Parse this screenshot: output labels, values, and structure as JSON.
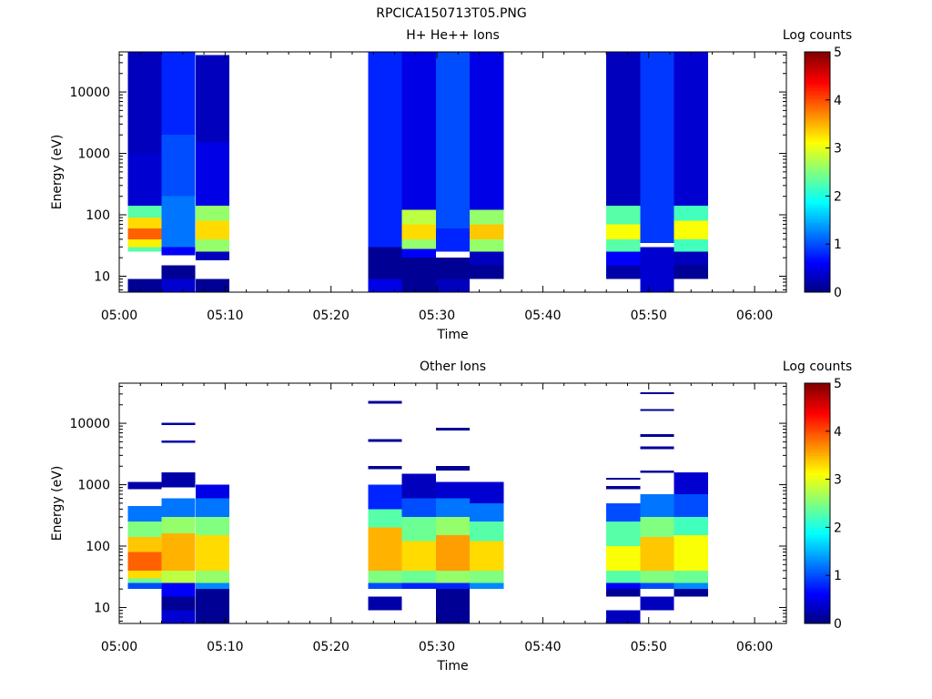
{
  "figure_title": "RPCICA150713T05.PNG",
  "chart_data": [
    {
      "type": "heatmap",
      "title": "H+ He++ Ions",
      "xlabel": "Time",
      "ylabel": "Energy (eV)",
      "x_ticks": [
        "05:00",
        "05:10",
        "05:20",
        "05:30",
        "05:40",
        "05:50",
        "06:00"
      ],
      "x_range_minutes": [
        0,
        63
      ],
      "y_ticks": [
        10,
        100,
        1000,
        10000
      ],
      "y_range": [
        5.5,
        45000
      ],
      "y_scale": "log",
      "colorbar": {
        "label": "Log counts",
        "range": [
          0,
          5
        ],
        "ticks": [
          0,
          1,
          2,
          3,
          4,
          5
        ]
      },
      "columns": [
        {
          "start": 0.8,
          "end": 4.0,
          "bins": [
            [
              5.5,
              9,
              0.1
            ],
            [
              9,
              25,
              null
            ],
            [
              25,
              30,
              2.3
            ],
            [
              30,
              40,
              3.2
            ],
            [
              40,
              60,
              3.9
            ],
            [
              60,
              90,
              3.3
            ],
            [
              90,
              140,
              2.3
            ],
            [
              140,
              1000,
              0.4
            ],
            [
              1000,
              45000,
              0.3
            ]
          ]
        },
        {
          "start": 4.0,
          "end": 7.2,
          "bins": [
            [
              5.5,
              9,
              0.4
            ],
            [
              9,
              15,
              0.1
            ],
            [
              15,
              22,
              null
            ],
            [
              22,
              30,
              0.6
            ],
            [
              30,
              200,
              1.2
            ],
            [
              200,
              2000,
              1.0
            ],
            [
              2000,
              45000,
              0.8
            ]
          ]
        },
        {
          "start": 7.2,
          "end": 10.4,
          "bins": [
            [
              5.5,
              9,
              0.1
            ],
            [
              9,
              18,
              null
            ],
            [
              18,
              25,
              0.3
            ],
            [
              25,
              40,
              2.6
            ],
            [
              40,
              80,
              3.3
            ],
            [
              80,
              140,
              2.6
            ],
            [
              140,
              1500,
              0.5
            ],
            [
              1500,
              40000,
              0.3
            ]
          ]
        },
        {
          "start": 23.5,
          "end": 26.7,
          "bins": [
            [
              5.5,
              9,
              0.5
            ],
            [
              9,
              30,
              0.1
            ],
            [
              30,
              60,
              0.8
            ],
            [
              60,
              45000,
              0.8
            ]
          ]
        },
        {
          "start": 26.7,
          "end": 29.9,
          "bins": [
            [
              5.5,
              20,
              0.1
            ],
            [
              20,
              28,
              0.6
            ],
            [
              28,
              40,
              2.6
            ],
            [
              40,
              70,
              3.3
            ],
            [
              70,
              120,
              2.8
            ],
            [
              120,
              45000,
              0.5
            ]
          ]
        },
        {
          "start": 29.9,
          "end": 33.1,
          "bins": [
            [
              5.5,
              9,
              0.3
            ],
            [
              9,
              20,
              0.1
            ],
            [
              20,
              25,
              null
            ],
            [
              25,
              60,
              0.8
            ],
            [
              60,
              45000,
              1.0
            ]
          ]
        },
        {
          "start": 33.1,
          "end": 36.3,
          "bins": [
            [
              9,
              15,
              0.1
            ],
            [
              15,
              25,
              0.3
            ],
            [
              25,
              40,
              2.6
            ],
            [
              40,
              70,
              3.4
            ],
            [
              70,
              120,
              2.6
            ],
            [
              120,
              45000,
              0.5
            ]
          ]
        },
        {
          "start": 46.0,
          "end": 49.2,
          "bins": [
            [
              9,
              15,
              0.2
            ],
            [
              15,
              25,
              0.6
            ],
            [
              25,
              40,
              2.3
            ],
            [
              40,
              70,
              3.1
            ],
            [
              70,
              140,
              2.3
            ],
            [
              140,
              45000,
              0.3
            ]
          ]
        },
        {
          "start": 49.2,
          "end": 52.4,
          "bins": [
            [
              5.5,
              30,
              0.4
            ],
            [
              30,
              35,
              null
            ],
            [
              35,
              60,
              0.9
            ],
            [
              60,
              45000,
              0.9
            ]
          ]
        },
        {
          "start": 52.4,
          "end": 55.6,
          "bins": [
            [
              9,
              15,
              0.1
            ],
            [
              15,
              25,
              0.3
            ],
            [
              25,
              40,
              2.2
            ],
            [
              40,
              80,
              3.1
            ],
            [
              80,
              140,
              2.2
            ],
            [
              140,
              45000,
              0.4
            ]
          ]
        }
      ]
    },
    {
      "type": "heatmap",
      "title": "Other Ions",
      "xlabel": "Time",
      "ylabel": "Energy (eV)",
      "x_ticks": [
        "05:00",
        "05:10",
        "05:20",
        "05:30",
        "05:40",
        "05:50",
        "06:00"
      ],
      "x_range_minutes": [
        0,
        63
      ],
      "y_ticks": [
        10,
        100,
        1000,
        10000
      ],
      "y_range": [
        5.5,
        45000
      ],
      "y_scale": "log",
      "colorbar": {
        "label": "Log counts",
        "range": [
          0,
          5
        ],
        "ticks": [
          0,
          1,
          2,
          3,
          4,
          5
        ]
      },
      "columns": [
        {
          "start": 0.8,
          "end": 4.0,
          "bins": [
            [
              20,
              25,
              1.0
            ],
            [
              25,
              30,
              2.4
            ],
            [
              30,
              40,
              3.3
            ],
            [
              40,
              80,
              3.9
            ],
            [
              80,
              140,
              3.4
            ],
            [
              140,
              250,
              2.5
            ],
            [
              250,
              450,
              1.2
            ],
            [
              850,
              1100,
              0.2
            ]
          ]
        },
        {
          "start": 4.0,
          "end": 7.2,
          "bins": [
            [
              5.5,
              9,
              0.4
            ],
            [
              9,
              15,
              0.1
            ],
            [
              15,
              25,
              0.6
            ],
            [
              25,
              40,
              2.8
            ],
            [
              40,
              160,
              3.5
            ],
            [
              160,
              300,
              2.6
            ],
            [
              300,
              600,
              1.2
            ],
            [
              900,
              1600,
              0.2
            ],
            [
              4800,
              5200,
              0.2
            ],
            [
              9400,
              10200,
              0.2
            ]
          ]
        },
        {
          "start": 7.2,
          "end": 10.4,
          "bins": [
            [
              5.5,
              20,
              0.1
            ],
            [
              20,
              25,
              1.3
            ],
            [
              25,
              40,
              2.6
            ],
            [
              40,
              150,
              3.3
            ],
            [
              150,
              300,
              2.5
            ],
            [
              300,
              600,
              1.2
            ],
            [
              600,
              1000,
              0.5
            ]
          ]
        },
        {
          "start": 23.5,
          "end": 26.7,
          "bins": [
            [
              9,
              15,
              0.2
            ],
            [
              15,
              20,
              null
            ],
            [
              20,
              25,
              1.0
            ],
            [
              25,
              40,
              2.5
            ],
            [
              40,
              200,
              3.5
            ],
            [
              200,
              400,
              2.3
            ],
            [
              400,
              1000,
              0.8
            ],
            [
              1800,
              2000,
              0.1
            ],
            [
              5000,
              5500,
              0.1
            ],
            [
              21000,
              23000,
              0.1
            ]
          ]
        },
        {
          "start": 26.7,
          "end": 29.9,
          "bins": [
            [
              20,
              25,
              0.8
            ],
            [
              25,
              40,
              2.4
            ],
            [
              40,
              120,
              3.3
            ],
            [
              120,
              300,
              2.4
            ],
            [
              300,
              600,
              1.0
            ],
            [
              600,
              1500,
              0.3
            ]
          ]
        },
        {
          "start": 29.9,
          "end": 33.1,
          "bins": [
            [
              5.5,
              20,
              0.1
            ],
            [
              20,
              25,
              0.8
            ],
            [
              25,
              40,
              2.6
            ],
            [
              40,
              150,
              3.6
            ],
            [
              150,
              300,
              2.6
            ],
            [
              300,
              600,
              1.2
            ],
            [
              600,
              1100,
              0.4
            ],
            [
              1700,
              2000,
              0.1
            ],
            [
              7600,
              8400,
              0.1
            ]
          ]
        },
        {
          "start": 33.1,
          "end": 36.3,
          "bins": [
            [
              20,
              25,
              1.3
            ],
            [
              25,
              40,
              2.5
            ],
            [
              40,
              120,
              3.3
            ],
            [
              120,
              250,
              2.3
            ],
            [
              250,
              500,
              1.2
            ],
            [
              500,
              1100,
              0.4
            ]
          ]
        },
        {
          "start": 46.0,
          "end": 49.2,
          "bins": [
            [
              5.5,
              9,
              0.3
            ],
            [
              15,
              20,
              0.1
            ],
            [
              20,
              25,
              0.6
            ],
            [
              25,
              40,
              2.3
            ],
            [
              40,
              100,
              3.1
            ],
            [
              100,
              250,
              2.3
            ],
            [
              250,
              500,
              1.0
            ],
            [
              850,
              950,
              0.1
            ],
            [
              1200,
              1300,
              0.1
            ]
          ]
        },
        {
          "start": 49.2,
          "end": 52.4,
          "bins": [
            [
              9,
              15,
              0.3
            ],
            [
              20,
              25,
              1.0
            ],
            [
              25,
              40,
              2.5
            ],
            [
              40,
              140,
              3.4
            ],
            [
              140,
              300,
              2.5
            ],
            [
              300,
              700,
              1.2
            ],
            [
              1550,
              1700,
              0.1
            ],
            [
              3800,
              4200,
              0.1
            ],
            [
              6000,
              6600,
              0.1
            ],
            [
              16000,
              17000,
              0.1
            ],
            [
              30000,
              32000,
              0.1
            ]
          ]
        },
        {
          "start": 52.4,
          "end": 55.6,
          "bins": [
            [
              15,
              20,
              0.1
            ],
            [
              20,
              25,
              1.3
            ],
            [
              25,
              40,
              2.4
            ],
            [
              40,
              150,
              3.1
            ],
            [
              150,
              300,
              2.2
            ],
            [
              300,
              700,
              1.0
            ],
            [
              700,
              1600,
              0.4
            ]
          ]
        }
      ]
    }
  ]
}
